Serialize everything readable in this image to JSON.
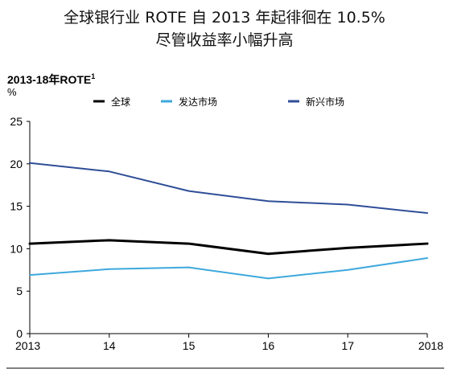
{
  "heading": {
    "line1": "全球银行业 ROTE 自 2013 年起徘徊在 10.5%",
    "line2": "尽管收益率小幅升高"
  },
  "chart_data": {
    "type": "line",
    "title": "2013-18年ROTE",
    "title_footnote": "1",
    "unit": "%",
    "categories": [
      "2013",
      "14",
      "15",
      "16",
      "17",
      "2018"
    ],
    "series": [
      {
        "name": "全球",
        "color": "#000000",
        "values": [
          10.6,
          11.0,
          10.6,
          9.4,
          10.1,
          10.6
        ]
      },
      {
        "name": "发达市场",
        "color": "#3ea8dd",
        "values": [
          6.9,
          7.6,
          7.8,
          6.5,
          7.5,
          8.9
        ]
      },
      {
        "name": "新兴市场",
        "color": "#2f4e97",
        "values": [
          20.1,
          19.1,
          16.8,
          15.6,
          15.2,
          14.2
        ]
      }
    ],
    "ylim": [
      0,
      25
    ],
    "yticks": [
      0,
      5,
      10,
      15,
      20,
      25
    ],
    "grid": false,
    "legend_position": "top"
  }
}
